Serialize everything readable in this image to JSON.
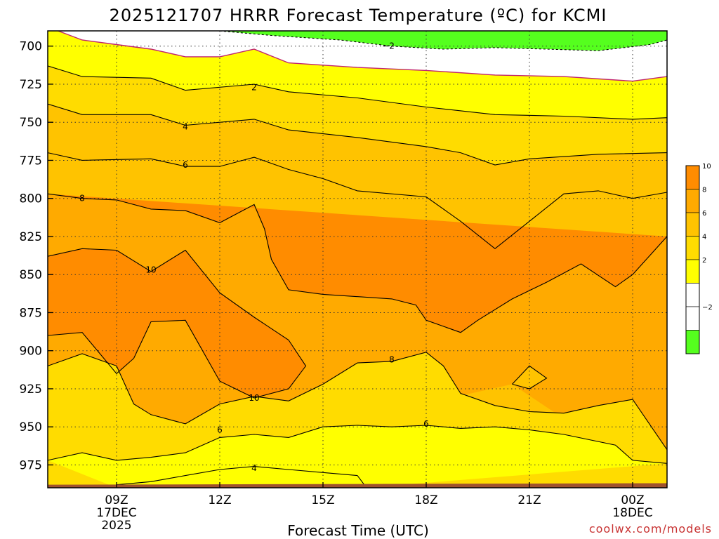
{
  "chart_data": {
    "type": "heatmap",
    "title": "2025121707 HRRR Forecast Temperature (ºC) for KCMI",
    "xlabel": "Forecast Time (UTC)",
    "credit": "coolwx.com/models",
    "y_axis": {
      "ticks": [
        "700",
        "725",
        "750",
        "775",
        "800",
        "825",
        "850",
        "875",
        "900",
        "925",
        "950",
        "975"
      ],
      "values": [
        700,
        725,
        750,
        775,
        800,
        825,
        850,
        875,
        900,
        925,
        950,
        975
      ],
      "range": [
        690,
        990
      ],
      "grid": "dotted"
    },
    "x_axis": {
      "range_hours": [
        7,
        25
      ],
      "ticks": [
        {
          "hour": 9,
          "lines": [
            "09Z",
            "17DEC",
            "2025"
          ]
        },
        {
          "hour": 12,
          "lines": [
            "12Z"
          ]
        },
        {
          "hour": 15,
          "lines": [
            "15Z"
          ]
        },
        {
          "hour": 18,
          "lines": [
            "18Z"
          ]
        },
        {
          "hour": 21,
          "lines": [
            "21Z"
          ]
        },
        {
          "hour": 24,
          "lines": [
            "00Z",
            "18DEC"
          ]
        }
      ],
      "grid": "dotted"
    },
    "legend": {
      "placement": "right",
      "bins": [
        {
          "min": -4,
          "max": -2,
          "color": "#55ff1e"
        },
        {
          "min": -2,
          "max": 0,
          "color": "#ffffff"
        },
        {
          "min": 0,
          "max": 2,
          "color": "#ffffff"
        },
        {
          "min": 2,
          "max": 4,
          "color": "#ffff00"
        },
        {
          "min": 4,
          "max": 6,
          "color": "#ffdc00"
        },
        {
          "min": 6,
          "max": 8,
          "color": "#ffc300"
        },
        {
          "min": 8,
          "max": 10,
          "color": "#ffaa00"
        },
        {
          "min": 10,
          "max": 12,
          "color": "#ff8c00"
        }
      ],
      "labels": [
        "−2",
        "2",
        "4",
        "6",
        "8",
        "10"
      ]
    },
    "surface_color": "#a0522d",
    "zero_line_color": "#c0246e",
    "isotherms": [
      {
        "value": -2,
        "points": [
          [
            12.0,
            690
          ],
          [
            13.5,
            693
          ],
          [
            15.5,
            696
          ],
          [
            17.0,
            700
          ],
          [
            18.5,
            702
          ],
          [
            20.0,
            701
          ],
          [
            21.5,
            702
          ],
          [
            23.0,
            703
          ],
          [
            24.5,
            699
          ],
          [
            25,
            696
          ]
        ]
      },
      {
        "value": 0,
        "points": [
          [
            7.3,
            690
          ],
          [
            8.0,
            696
          ],
          [
            9.0,
            699
          ],
          [
            10.0,
            702
          ],
          [
            11.0,
            707
          ],
          [
            12.0,
            707
          ],
          [
            13.0,
            702
          ],
          [
            14.0,
            711
          ],
          [
            16.0,
            714
          ],
          [
            18.0,
            716
          ],
          [
            20.0,
            719
          ],
          [
            22.0,
            720
          ],
          [
            24.0,
            723
          ],
          [
            25,
            720
          ]
        ]
      },
      {
        "value": 2,
        "points": [
          [
            7.0,
            713
          ],
          [
            8.0,
            720
          ],
          [
            10.0,
            721
          ],
          [
            11.0,
            729
          ],
          [
            13.0,
            725
          ],
          [
            14.0,
            730
          ],
          [
            16.0,
            734
          ],
          [
            18.0,
            740
          ],
          [
            20.0,
            745
          ],
          [
            22.0,
            746
          ],
          [
            24.0,
            748
          ],
          [
            25,
            747
          ]
        ]
      },
      {
        "value": 4,
        "points": [
          [
            7.0,
            738
          ],
          [
            8.0,
            745
          ],
          [
            10.0,
            745
          ],
          [
            11.0,
            752
          ],
          [
            13.0,
            748
          ],
          [
            14.0,
            755
          ],
          [
            16.0,
            760
          ],
          [
            18.0,
            766
          ],
          [
            19.0,
            770
          ],
          [
            20.0,
            778
          ],
          [
            21.0,
            774
          ],
          [
            23.0,
            771
          ],
          [
            25,
            770
          ]
        ]
      },
      {
        "value": 6,
        "points": [
          [
            7.0,
            770
          ],
          [
            8.0,
            775
          ],
          [
            10.0,
            774
          ],
          [
            11.0,
            779
          ],
          [
            12.0,
            779
          ],
          [
            13.0,
            773
          ],
          [
            14.0,
            781
          ],
          [
            15.0,
            787
          ],
          [
            16.0,
            795
          ],
          [
            18.0,
            799
          ],
          [
            19.0,
            815
          ],
          [
            20.0,
            833
          ],
          [
            21.0,
            815
          ],
          [
            22.0,
            797
          ],
          [
            23.0,
            795
          ],
          [
            24.0,
            800
          ],
          [
            25,
            796
          ]
        ]
      },
      {
        "value": 8,
        "points": [
          [
            7.0,
            797
          ],
          [
            8.0,
            800
          ],
          [
            9.0,
            801
          ],
          [
            10.0,
            807
          ],
          [
            11.0,
            808
          ],
          [
            12.0,
            816
          ],
          [
            13.0,
            804
          ],
          [
            13.3,
            820
          ],
          [
            13.5,
            840
          ],
          [
            14.0,
            860
          ],
          [
            15.0,
            863
          ],
          [
            17.0,
            866
          ],
          [
            17.7,
            870
          ],
          [
            18.0,
            880
          ],
          [
            19.0,
            888
          ],
          [
            19.5,
            880
          ],
          [
            20.5,
            866
          ],
          [
            21.5,
            855
          ],
          [
            22.5,
            843
          ],
          [
            23.5,
            858
          ],
          [
            24.0,
            850
          ],
          [
            25,
            825
          ]
        ]
      },
      {
        "value": 10,
        "points": [
          [
            7.0,
            838
          ],
          [
            8.0,
            833
          ],
          [
            9.0,
            834
          ],
          [
            10.0,
            848
          ],
          [
            11.0,
            834
          ],
          [
            12.0,
            862
          ],
          [
            13.0,
            878
          ],
          [
            14.0,
            893
          ],
          [
            14.5,
            910
          ],
          [
            14.0,
            925
          ],
          [
            13.0,
            931
          ],
          [
            12.0,
            920
          ],
          [
            11.5,
            900
          ],
          [
            11.0,
            880
          ],
          [
            10.0,
            881
          ],
          [
            9.5,
            905
          ],
          [
            9.0,
            915
          ],
          [
            8.0,
            888
          ],
          [
            7.0,
            890
          ]
        ]
      },
      {
        "value": 10,
        "points": [
          [
            20.5,
            922
          ],
          [
            21.0,
            910
          ],
          [
            21.5,
            918
          ],
          [
            21.0,
            925
          ],
          [
            20.5,
            922
          ]
        ]
      },
      {
        "value": 8,
        "points": [
          [
            7.0,
            910
          ],
          [
            8.0,
            902
          ],
          [
            9.0,
            910
          ],
          [
            9.5,
            935
          ],
          [
            10.0,
            942
          ],
          [
            11.0,
            948
          ],
          [
            12.0,
            935
          ],
          [
            13.0,
            930
          ],
          [
            14.0,
            933
          ],
          [
            15.0,
            922
          ],
          [
            16.0,
            908
          ],
          [
            17.0,
            907
          ],
          [
            18.0,
            901
          ],
          [
            18.5,
            910
          ],
          [
            19.0,
            928
          ],
          [
            20.0,
            936
          ],
          [
            21.0,
            940
          ],
          [
            22.0,
            941
          ],
          [
            23.0,
            936
          ],
          [
            24.0,
            932
          ],
          [
            25,
            965
          ]
        ]
      },
      {
        "value": 6,
        "points": [
          [
            7.0,
            972
          ],
          [
            8.0,
            967
          ],
          [
            9.0,
            972
          ],
          [
            10.0,
            970
          ],
          [
            11.0,
            967
          ],
          [
            12.0,
            957
          ],
          [
            13.0,
            955
          ],
          [
            14.0,
            957
          ],
          [
            15.0,
            950
          ],
          [
            16.0,
            949
          ],
          [
            17.0,
            950
          ],
          [
            18.0,
            949
          ],
          [
            19.0,
            951
          ],
          [
            20.0,
            950
          ],
          [
            21.0,
            952
          ],
          [
            22.0,
            955
          ],
          [
            23.5,
            962
          ],
          [
            24.0,
            972
          ],
          [
            25,
            974
          ]
        ]
      },
      {
        "value": 4,
        "points": [
          [
            9.0,
            988
          ],
          [
            10.0,
            986
          ],
          [
            11.0,
            982
          ],
          [
            12.0,
            978
          ],
          [
            13.0,
            976
          ],
          [
            14.0,
            978
          ],
          [
            15.0,
            980
          ],
          [
            16.0,
            982
          ],
          [
            16.2,
            988
          ]
        ]
      }
    ],
    "contour_labels": [
      {
        "text": "−2",
        "hour": 16.9,
        "p": 700
      },
      {
        "text": "2",
        "hour": 13.0,
        "p": 727
      },
      {
        "text": "4",
        "hour": 11.0,
        "p": 753
      },
      {
        "text": "6",
        "hour": 11.0,
        "p": 778
      },
      {
        "text": "8",
        "hour": 8.0,
        "p": 800
      },
      {
        "text": "10",
        "hour": 10.0,
        "p": 847
      },
      {
        "text": "8",
        "hour": 17.0,
        "p": 906
      },
      {
        "text": "10",
        "hour": 13.0,
        "p": 931
      },
      {
        "text": "6",
        "hour": 12.0,
        "p": 952
      },
      {
        "text": "6",
        "hour": 18.0,
        "p": 948
      },
      {
        "text": "4",
        "hour": 13.0,
        "p": 977
      }
    ]
  }
}
